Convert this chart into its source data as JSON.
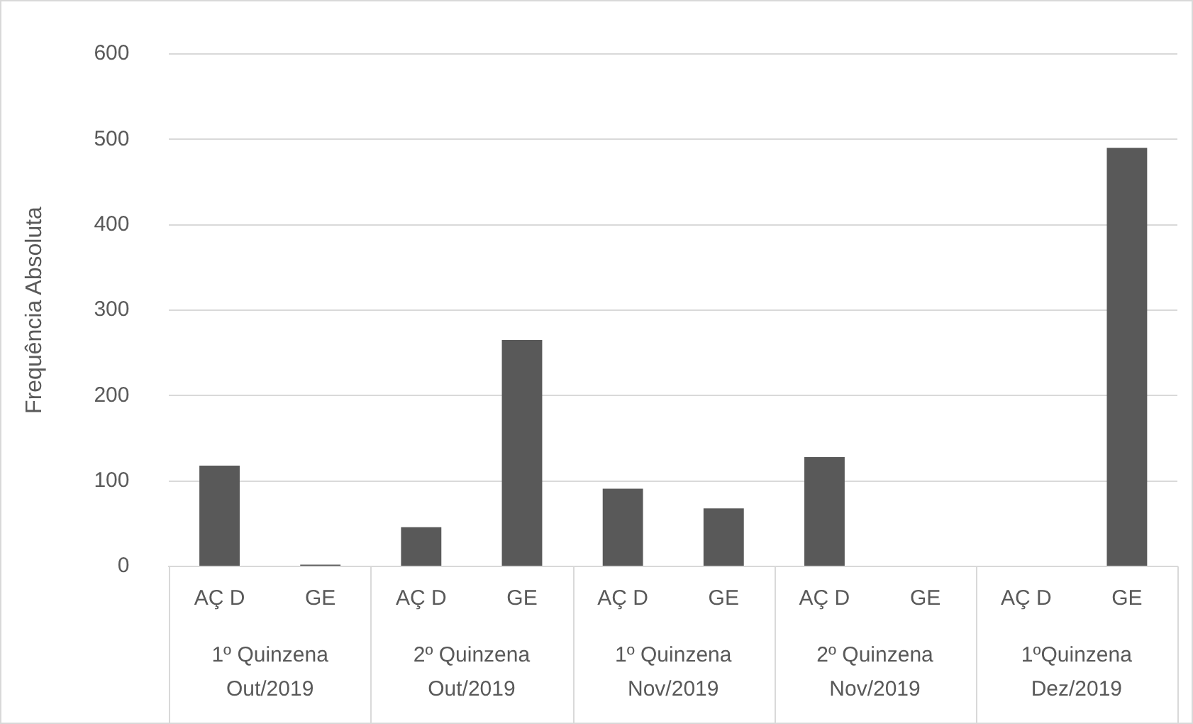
{
  "chart_data": {
    "type": "bar",
    "ylabel": "Frequência Absoluta",
    "categories": [
      "AÇ D",
      "GE",
      "AÇ D",
      "GE",
      "AÇ D",
      "GE",
      "AÇ D",
      "GE",
      "AÇ D",
      "GE"
    ],
    "values": [
      118,
      2,
      46,
      265,
      91,
      68,
      128,
      0,
      0,
      490
    ],
    "color": "#595959",
    "ylim": [
      0,
      600
    ],
    "yticks": [
      0,
      100,
      200,
      300,
      400,
      500,
      600
    ],
    "grid": "y",
    "annotations": [
      "1º Quinzena\nOut/2019",
      "2º Quinzena\nOut/2019",
      "1º Quinzena\nNov/2019",
      "2º Quinzena\nNov/2019",
      "1ºQuinzena\nDez/2019"
    ]
  }
}
